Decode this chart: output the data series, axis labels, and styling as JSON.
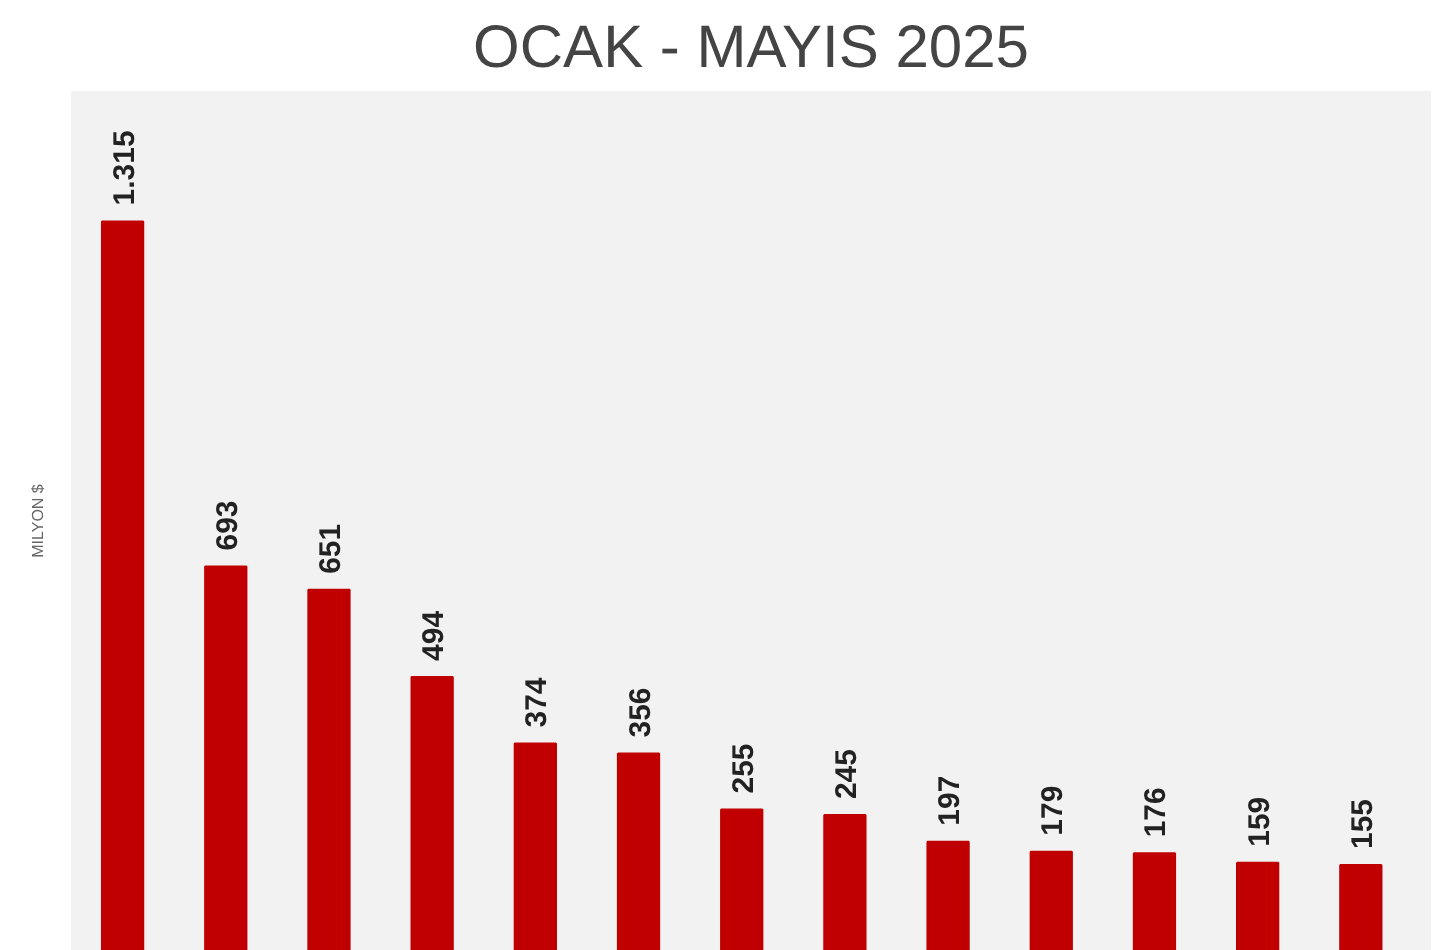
{
  "chart_data": {
    "type": "bar",
    "title": "OCAK - MAYIS 2025",
    "ylabel": "MILYON $",
    "categories": [
      null,
      null,
      null,
      null,
      null,
      null,
      null,
      null,
      null,
      null,
      null,
      null,
      null
    ],
    "values": [
      1315,
      693,
      651,
      494,
      374,
      356,
      255,
      245,
      197,
      179,
      176,
      159,
      155
    ],
    "color": "#c00000",
    "value_labels": [
      "1.315",
      "693",
      "651",
      "494",
      "374",
      "356",
      "255",
      "245",
      "197",
      "179",
      "176",
      "159",
      "155"
    ],
    "ylim": [
      0,
      1550
    ]
  }
}
